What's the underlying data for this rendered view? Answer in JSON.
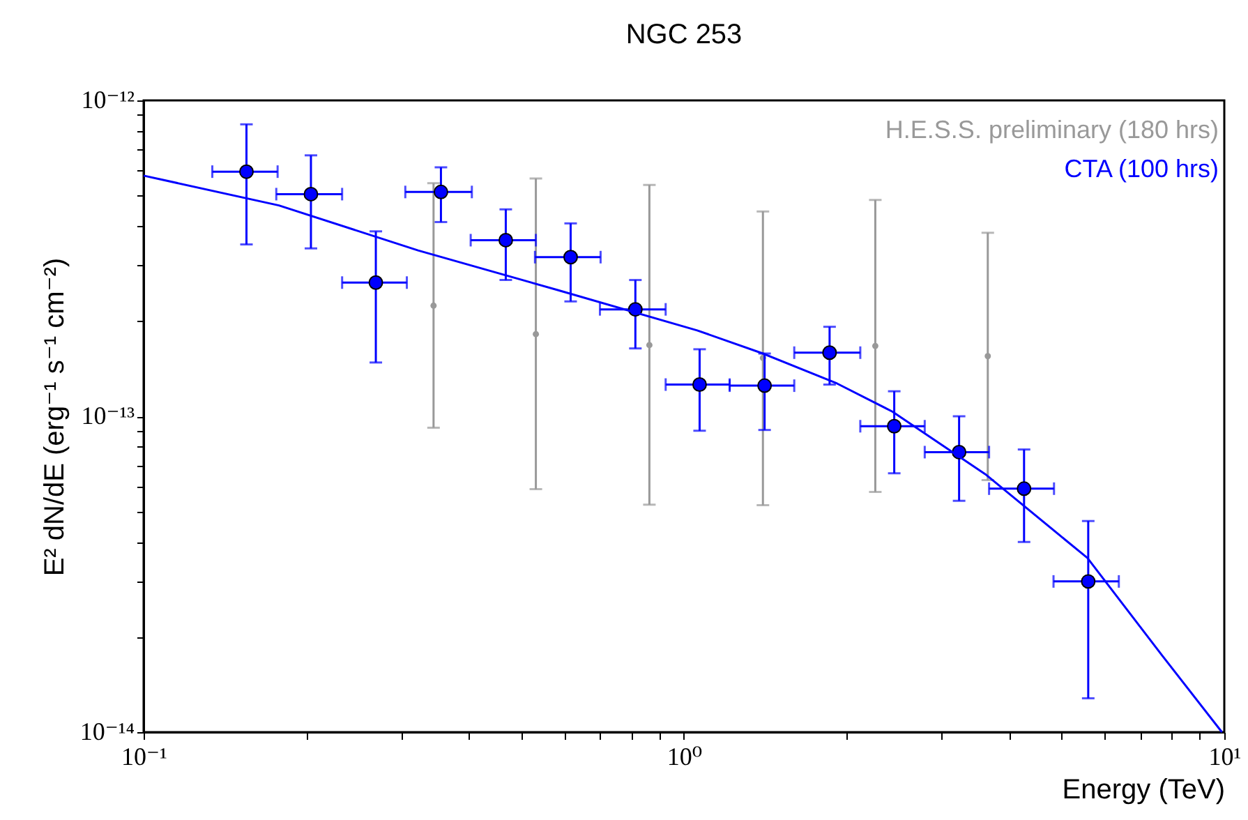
{
  "chart_data": {
    "type": "scatter",
    "title": "NGC 253",
    "xlabel": "Energy (TeV)",
    "ylabel": "E² dN/dE (erg⁻¹ s⁻¹ cm⁻²)",
    "log": "xy",
    "legend": "top right",
    "xlim": [
      0.1,
      10
    ],
    "ylim": [
      1e-14,
      1e-12
    ],
    "xticks": [
      {
        "value": 0.1,
        "label": "10⁻¹"
      },
      {
        "value": 0.2,
        "label": null
      },
      {
        "value": 0.3,
        "label": null
      },
      {
        "value": 0.4,
        "label": null
      },
      {
        "value": 0.5,
        "label": null
      },
      {
        "value": 0.6,
        "label": null
      },
      {
        "value": 0.7,
        "label": null
      },
      {
        "value": 0.8,
        "label": null
      },
      {
        "value": 0.9,
        "label": null
      },
      {
        "value": 1,
        "label": "10⁰"
      },
      {
        "value": 2,
        "label": null
      },
      {
        "value": 3,
        "label": null
      },
      {
        "value": 4,
        "label": null
      },
      {
        "value": 5,
        "label": null
      },
      {
        "value": 6,
        "label": null
      },
      {
        "value": 7,
        "label": null
      },
      {
        "value": 8,
        "label": null
      },
      {
        "value": 9,
        "label": null
      },
      {
        "value": 10,
        "label": "10¹"
      }
    ],
    "yticks": [
      {
        "value": 1e-14,
        "label": "10⁻¹⁴"
      },
      {
        "value": 2e-14,
        "label": null
      },
      {
        "value": 3e-14,
        "label": null
      },
      {
        "value": 4e-14,
        "label": null
      },
      {
        "value": 5e-14,
        "label": null
      },
      {
        "value": 6e-14,
        "label": null
      },
      {
        "value": 7e-14,
        "label": null
      },
      {
        "value": 8e-14,
        "label": null
      },
      {
        "value": 9e-14,
        "label": null
      },
      {
        "value": 1e-13,
        "label": "10⁻¹³"
      },
      {
        "value": 2e-13,
        "label": null
      },
      {
        "value": 3e-13,
        "label": null
      },
      {
        "value": 4e-13,
        "label": null
      },
      {
        "value": 5e-13,
        "label": null
      },
      {
        "value": 6e-13,
        "label": null
      },
      {
        "value": 7e-13,
        "label": null
      },
      {
        "value": 8e-13,
        "label": null
      },
      {
        "value": 9e-13,
        "label": null
      },
      {
        "value": 1e-12,
        "label": "10⁻¹²"
      }
    ],
    "series": [
      {
        "name": "H.E.S.S. preliminary (180 hrs)",
        "type": "scatter",
        "color": "#999999",
        "marker": "circle",
        "x": [
          0.344,
          0.532,
          0.863,
          1.4,
          2.26,
          3.65
        ],
        "values": [
          2.24e-13,
          1.82e-13,
          1.68e-13,
          1.53e-13,
          1.67e-13,
          1.55e-13
        ],
        "errors": [
          [
            9.2e-14,
            5.47e-13
          ],
          [
            5.88e-14,
            5.66e-13
          ],
          [
            5.25e-14,
            5.4e-13
          ],
          [
            5.23e-14,
            4.45e-13
          ],
          [
            5.76e-14,
            4.84e-13
          ],
          [
            6.28e-14,
            3.81e-13
          ]
        ]
      },
      {
        "name": "CTA (100 hrs)",
        "type": "scatter",
        "color": "#0000ff",
        "marker": "circle",
        "x": [
          0.155,
          0.204,
          0.269,
          0.355,
          0.468,
          0.617,
          0.813,
          1.069,
          1.41,
          1.86,
          2.45,
          3.23,
          4.26,
          5.6
        ],
        "values": [
          5.95e-13,
          5.05e-13,
          2.65e-13,
          5.13e-13,
          3.61e-13,
          3.19e-13,
          2.18e-13,
          1.26e-13,
          1.25e-13,
          1.59e-13,
          9.3e-14,
          7.7e-14,
          5.9e-14,
          3e-14
        ],
        "errors": [
          [
            3.5e-13,
            8.4e-13
          ],
          [
            3.4e-13,
            6.7e-13
          ],
          [
            1.48e-13,
            3.85e-13
          ],
          [
            4.12e-13,
            6.14e-13
          ],
          [
            2.7e-13,
            4.52e-13
          ],
          [
            2.31e-13,
            4.08e-13
          ],
          [
            1.64e-13,
            2.7e-13
          ],
          [
            9e-14,
            1.63e-13
          ],
          [
            9.05e-14,
            1.58e-13
          ],
          [
            1.26e-13,
            1.92e-13
          ],
          [
            6.6e-14,
            1.2e-13
          ],
          [
            5.4e-14,
            1e-13
          ],
          [
            4e-14,
            7.85e-14
          ],
          [
            1.28e-14,
            4.66e-14
          ]
        ],
        "xerrors": [
          [
            0.134,
            0.177
          ],
          [
            0.176,
            0.233
          ],
          [
            0.233,
            0.307
          ],
          [
            0.305,
            0.405
          ],
          [
            0.403,
            0.532
          ],
          [
            0.53,
            0.701
          ],
          [
            0.699,
            0.925
          ],
          [
            0.925,
            1.215
          ],
          [
            1.215,
            1.6
          ],
          [
            1.6,
            2.12
          ],
          [
            2.12,
            2.79
          ],
          [
            2.79,
            3.67
          ],
          [
            3.67,
            4.84
          ],
          [
            4.83,
            6.38
          ]
        ]
      },
      {
        "type": "line",
        "color": "#0000ff",
        "line_style": "solid",
        "x": [
          0.1,
          0.178,
          0.322,
          0.584,
          1.058,
          1.4,
          1.92,
          2.43,
          3.61,
          5.58,
          7.67,
          9.9
        ],
        "values": [
          5.78e-13,
          4.65e-13,
          3.35e-13,
          2.51e-13,
          1.87e-13,
          1.58e-13,
          1.27e-13,
          1.035e-13,
          6.56e-14,
          3.56e-14,
          1.75e-14,
          1e-14
        ]
      }
    ]
  }
}
